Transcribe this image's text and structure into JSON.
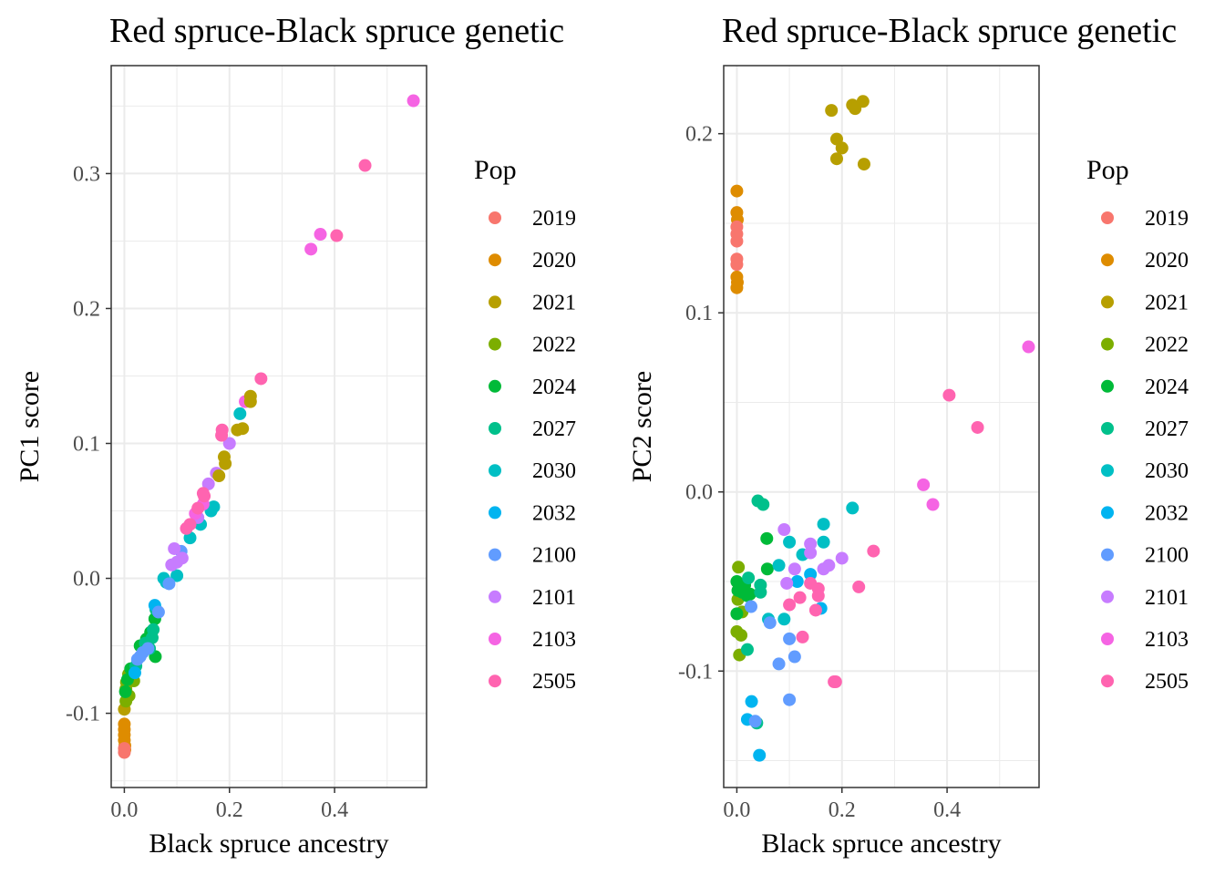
{
  "pop_colors": {
    "2019": "#F8766D",
    "2020": "#DE8C00",
    "2021": "#B79F00",
    "2022": "#7CAE00",
    "2024": "#00BA38",
    "2027": "#00C08B",
    "2030": "#00BFC4",
    "2032": "#00B4F0",
    "2100": "#619CFF",
    "2101": "#C77CFF",
    "2103": "#F564E3",
    "2505": "#FF64B0"
  },
  "chart_data": [
    {
      "type": "scatter",
      "title": "Red spruce-Black spruce genetic",
      "xlabel": "Black spruce ancestry",
      "ylabel": "PC1 score",
      "xlim": [
        -0.025,
        0.575
      ],
      "ylim": [
        -0.155,
        0.38
      ],
      "xticks": [
        0,
        0.2,
        0.4
      ],
      "xtick_labels": [
        "0.0",
        "0.2",
        "0.4"
      ],
      "yticks": [
        -0.1,
        0,
        0.1,
        0.2,
        0.3
      ],
      "ytick_labels": [
        "-0.1",
        "0.0",
        "0.1",
        "0.2",
        "0.3"
      ],
      "grid": true,
      "legend_title": "Pop",
      "legend_position": "right",
      "points": [
        [
          0.0,
          -0.108,
          "2020"
        ],
        [
          0.0,
          -0.112,
          "2020"
        ],
        [
          0.0,
          -0.116,
          "2020"
        ],
        [
          0.0,
          -0.12,
          "2020"
        ],
        [
          0.001,
          -0.124,
          "2020"
        ],
        [
          0.001,
          -0.127,
          "2020"
        ],
        [
          0.0,
          -0.126,
          "2019"
        ],
        [
          0.0,
          -0.129,
          "2019"
        ],
        [
          0.0,
          -0.097,
          "2021"
        ],
        [
          0.003,
          -0.091,
          "2022"
        ],
        [
          0.003,
          -0.082,
          "2022"
        ],
        [
          0.004,
          -0.077,
          "2022"
        ],
        [
          0.008,
          -0.071,
          "2022"
        ],
        [
          0.018,
          -0.076,
          "2022"
        ],
        [
          0.009,
          -0.087,
          "2022"
        ],
        [
          0.002,
          -0.084,
          "2024"
        ],
        [
          0.006,
          -0.075,
          "2024"
        ],
        [
          0.012,
          -0.067,
          "2024"
        ],
        [
          0.03,
          -0.05,
          "2024"
        ],
        [
          0.059,
          -0.058,
          "2024"
        ],
        [
          0.058,
          -0.03,
          "2024"
        ],
        [
          0.042,
          -0.045,
          "2024"
        ],
        [
          0.05,
          -0.04,
          "2024"
        ],
        [
          0.053,
          -0.044,
          "2027"
        ],
        [
          0.06,
          -0.023,
          "2027"
        ],
        [
          0.055,
          -0.038,
          "2027"
        ],
        [
          0.04,
          -0.048,
          "2027"
        ],
        [
          0.022,
          -0.065,
          "2027"
        ],
        [
          0.048,
          -0.052,
          "2027"
        ],
        [
          0.075,
          0.0,
          "2030"
        ],
        [
          0.1,
          0.002,
          "2030"
        ],
        [
          0.08,
          -0.003,
          "2030"
        ],
        [
          0.125,
          0.03,
          "2030"
        ],
        [
          0.145,
          0.04,
          "2030"
        ],
        [
          0.165,
          0.05,
          "2030"
        ],
        [
          0.22,
          0.122,
          "2030"
        ],
        [
          0.17,
          0.053,
          "2030"
        ],
        [
          0.058,
          -0.02,
          "2032"
        ],
        [
          0.02,
          -0.07,
          "2032"
        ],
        [
          0.025,
          -0.06,
          "2100"
        ],
        [
          0.035,
          -0.055,
          "2100"
        ],
        [
          0.045,
          -0.052,
          "2100"
        ],
        [
          0.085,
          -0.004,
          "2100"
        ],
        [
          0.108,
          0.02,
          "2100"
        ],
        [
          0.065,
          -0.025,
          "2100"
        ],
        [
          0.03,
          -0.058,
          "2100"
        ],
        [
          0.095,
          0.022,
          "2101"
        ],
        [
          0.09,
          0.01,
          "2101"
        ],
        [
          0.14,
          0.045,
          "2101"
        ],
        [
          0.175,
          0.078,
          "2101"
        ],
        [
          0.2,
          0.1,
          "2101"
        ],
        [
          0.11,
          0.015,
          "2101"
        ],
        [
          0.16,
          0.07,
          "2101"
        ],
        [
          0.1,
          0.012,
          "2101"
        ],
        [
          0.355,
          0.244,
          "2103"
        ],
        [
          0.373,
          0.255,
          "2103"
        ],
        [
          0.55,
          0.354,
          "2103"
        ],
        [
          0.23,
          0.131,
          "2103"
        ],
        [
          0.135,
          0.048,
          "2103"
        ],
        [
          0.15,
          0.055,
          "2103"
        ],
        [
          0.458,
          0.306,
          "2505"
        ],
        [
          0.404,
          0.254,
          "2505"
        ],
        [
          0.26,
          0.148,
          "2505"
        ],
        [
          0.186,
          0.11,
          "2505"
        ],
        [
          0.185,
          0.106,
          "2505"
        ],
        [
          0.152,
          0.061,
          "2505"
        ],
        [
          0.118,
          0.037,
          "2505"
        ],
        [
          0.125,
          0.04,
          "2505"
        ],
        [
          0.14,
          0.052,
          "2505"
        ],
        [
          0.15,
          0.063,
          "2505"
        ],
        [
          0.19,
          0.09,
          "2021"
        ],
        [
          0.192,
          0.085,
          "2021"
        ],
        [
          0.18,
          0.076,
          "2021"
        ],
        [
          0.215,
          0.11,
          "2021"
        ],
        [
          0.225,
          0.111,
          "2021"
        ],
        [
          0.24,
          0.135,
          "2021"
        ],
        [
          0.24,
          0.131,
          "2021"
        ]
      ]
    },
    {
      "type": "scatter",
      "title": "Red spruce-Black spruce genetic",
      "xlabel": "Black spruce ancestry",
      "ylabel": "PC2 score",
      "xlim": [
        -0.025,
        0.575
      ],
      "ylim": [
        -0.165,
        0.238
      ],
      "xticks": [
        0,
        0.2,
        0.4
      ],
      "xtick_labels": [
        "0.0",
        "0.2",
        "0.4"
      ],
      "yticks": [
        -0.1,
        0,
        0.1,
        0.2
      ],
      "ytick_labels": [
        "-0.1",
        "0.0",
        "0.1",
        "0.2"
      ],
      "grid": true,
      "legend_title": "Pop",
      "legend_position": "right",
      "points": [
        [
          0.0,
          0.168,
          "2020"
        ],
        [
          0.0,
          0.156,
          "2020"
        ],
        [
          0.001,
          0.152,
          "2020"
        ],
        [
          0.0,
          0.12,
          "2020"
        ],
        [
          0.001,
          0.117,
          "2020"
        ],
        [
          0.0,
          0.114,
          "2020"
        ],
        [
          0.0,
          0.148,
          "2019"
        ],
        [
          0.0,
          0.144,
          "2019"
        ],
        [
          0.0,
          0.14,
          "2019"
        ],
        [
          0.0,
          0.13,
          "2019"
        ],
        [
          0.0,
          0.127,
          "2019"
        ],
        [
          0.18,
          0.213,
          "2021"
        ],
        [
          0.22,
          0.216,
          "2021"
        ],
        [
          0.225,
          0.214,
          "2021"
        ],
        [
          0.24,
          0.218,
          "2021"
        ],
        [
          0.19,
          0.197,
          "2021"
        ],
        [
          0.2,
          0.192,
          "2021"
        ],
        [
          0.19,
          0.186,
          "2021"
        ],
        [
          0.242,
          0.183,
          "2021"
        ],
        [
          0.003,
          -0.042,
          "2022"
        ],
        [
          0.0,
          -0.078,
          "2022"
        ],
        [
          0.008,
          -0.08,
          "2022"
        ],
        [
          0.005,
          -0.091,
          "2022"
        ],
        [
          0.01,
          -0.067,
          "2022"
        ],
        [
          0.002,
          -0.06,
          "2022"
        ],
        [
          0.0,
          -0.05,
          "2024"
        ],
        [
          0.002,
          -0.055,
          "2024"
        ],
        [
          0.01,
          -0.056,
          "2024"
        ],
        [
          0.058,
          -0.043,
          "2024"
        ],
        [
          0.057,
          -0.026,
          "2024"
        ],
        [
          0.0,
          -0.068,
          "2024"
        ],
        [
          0.02,
          -0.058,
          "2024"
        ],
        [
          0.015,
          -0.052,
          "2024"
        ],
        [
          0.025,
          -0.057,
          "2024"
        ],
        [
          0.04,
          -0.005,
          "2027"
        ],
        [
          0.05,
          -0.007,
          "2027"
        ],
        [
          0.045,
          -0.052,
          "2027"
        ],
        [
          0.045,
          -0.056,
          "2027"
        ],
        [
          0.02,
          -0.088,
          "2027"
        ],
        [
          0.038,
          -0.129,
          "2027"
        ],
        [
          0.022,
          -0.048,
          "2027"
        ],
        [
          0.22,
          -0.009,
          "2030"
        ],
        [
          0.165,
          -0.018,
          "2030"
        ],
        [
          0.1,
          -0.028,
          "2030"
        ],
        [
          0.125,
          -0.035,
          "2030"
        ],
        [
          0.165,
          -0.028,
          "2030"
        ],
        [
          0.08,
          -0.041,
          "2030"
        ],
        [
          0.09,
          -0.071,
          "2030"
        ],
        [
          0.06,
          -0.071,
          "2030"
        ],
        [
          0.043,
          -0.147,
          "2032"
        ],
        [
          0.028,
          -0.117,
          "2032"
        ],
        [
          0.02,
          -0.127,
          "2032"
        ],
        [
          0.14,
          -0.046,
          "2032"
        ],
        [
          0.115,
          -0.05,
          "2032"
        ],
        [
          0.16,
          -0.065,
          "2032"
        ],
        [
          0.1,
          -0.116,
          "2100"
        ],
        [
          0.08,
          -0.096,
          "2100"
        ],
        [
          0.11,
          -0.092,
          "2100"
        ],
        [
          0.1,
          -0.082,
          "2100"
        ],
        [
          0.063,
          -0.073,
          "2100"
        ],
        [
          0.027,
          -0.064,
          "2100"
        ],
        [
          0.035,
          -0.128,
          "2100"
        ],
        [
          0.09,
          -0.021,
          "2101"
        ],
        [
          0.14,
          -0.029,
          "2101"
        ],
        [
          0.14,
          -0.034,
          "2101"
        ],
        [
          0.2,
          -0.037,
          "2101"
        ],
        [
          0.175,
          -0.041,
          "2101"
        ],
        [
          0.165,
          -0.043,
          "2101"
        ],
        [
          0.11,
          -0.043,
          "2101"
        ],
        [
          0.095,
          -0.051,
          "2101"
        ],
        [
          0.555,
          0.081,
          "2103"
        ],
        [
          0.355,
          0.004,
          "2103"
        ],
        [
          0.373,
          -0.007,
          "2103"
        ],
        [
          0.404,
          0.054,
          "2505"
        ],
        [
          0.458,
          0.036,
          "2505"
        ],
        [
          0.26,
          -0.033,
          "2505"
        ],
        [
          0.232,
          -0.053,
          "2505"
        ],
        [
          0.14,
          -0.051,
          "2505"
        ],
        [
          0.155,
          -0.054,
          "2505"
        ],
        [
          0.155,
          -0.058,
          "2505"
        ],
        [
          0.12,
          -0.059,
          "2505"
        ],
        [
          0.1,
          -0.063,
          "2505"
        ],
        [
          0.15,
          -0.066,
          "2505"
        ],
        [
          0.125,
          -0.081,
          "2505"
        ],
        [
          0.185,
          -0.106,
          "2505"
        ],
        [
          0.188,
          -0.106,
          "2505"
        ]
      ]
    }
  ]
}
